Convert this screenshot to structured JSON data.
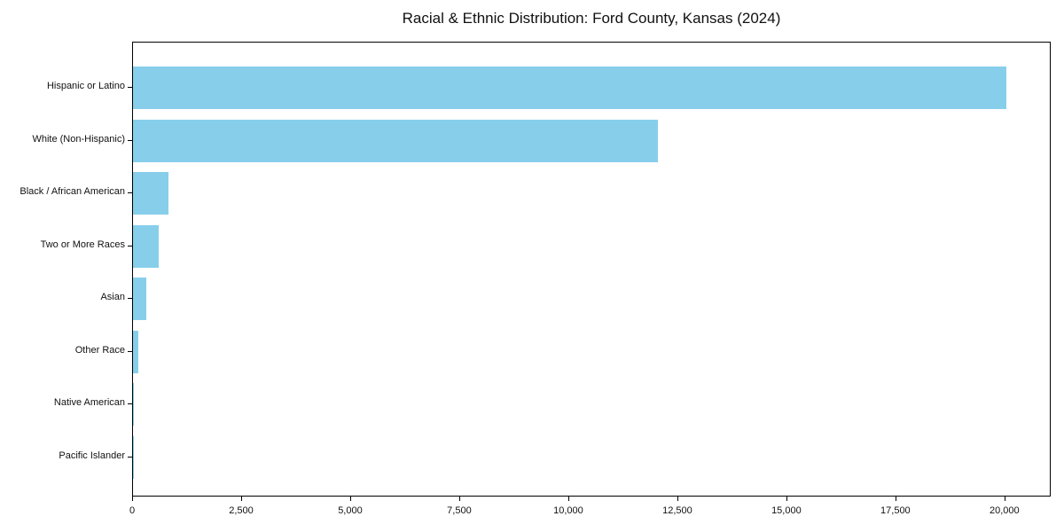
{
  "chart_data": {
    "type": "bar",
    "orientation": "horizontal",
    "title": "Racial & Ethnic Distribution: Ford County, Kansas (2024)",
    "categories": [
      "Hispanic or Latino",
      "White (Non-Hispanic)",
      "Black / African American",
      "Two or More Races",
      "Asian",
      "Other Race",
      "Native American",
      "Pacific Islander"
    ],
    "values": [
      20060,
      12050,
      820,
      595,
      315,
      125,
      20,
      10
    ],
    "xlabel": "",
    "ylabel": "",
    "xlim": [
      0,
      21060
    ],
    "xticks": [
      0,
      2500,
      5000,
      7500,
      10000,
      12500,
      15000,
      17500,
      20000
    ],
    "xtick_labels": [
      "0",
      "2,500",
      "5,000",
      "7,500",
      "10,000",
      "12,500",
      "15,000",
      "17,500",
      "20,000"
    ],
    "bar_color": "#87CEEB",
    "axis_color": "#000000",
    "background_color": "#ffffff",
    "grid": false,
    "legend": false
  }
}
